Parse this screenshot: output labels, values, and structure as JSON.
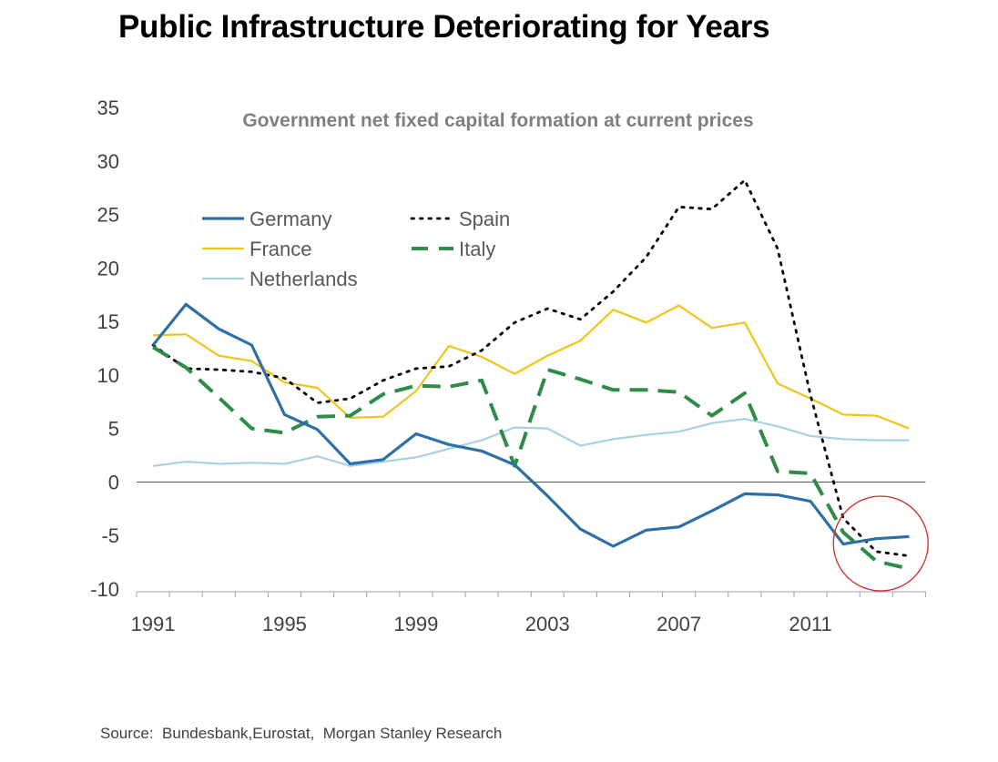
{
  "title": "Public Infrastructure Deteriorating for Years",
  "source": "Source:  Bundesbank,Eurostat,  Morgan Stanley Research",
  "chart_data": {
    "type": "line",
    "subtitle": "Government net fixed capital formation at current prices",
    "x": [
      1991,
      1992,
      1993,
      1994,
      1995,
      1996,
      1997,
      1998,
      1999,
      2000,
      2001,
      2002,
      2003,
      2004,
      2005,
      2006,
      2007,
      2008,
      2009,
      2010,
      2011,
      2012,
      2013,
      2014
    ],
    "xticks": [
      "1991",
      "1995",
      "1999",
      "2003",
      "2007",
      "2011"
    ],
    "yticks": [
      "35",
      "30",
      "25",
      "20",
      "15",
      "10",
      "5",
      "0",
      "-5",
      "-10"
    ],
    "ylim": [
      -10,
      35
    ],
    "xlabel": "",
    "ylabel": "",
    "legend_position": "top-left",
    "zero_line": true,
    "annotation": "red circle highlighting 2012-2014 values",
    "series": [
      {
        "name": "Germany",
        "color": "#2e6fa8",
        "style": "solid",
        "values": [
          12.8,
          16.6,
          14.3,
          12.8,
          6.3,
          4.9,
          1.7,
          2.1,
          4.5,
          3.5,
          2.9,
          1.6,
          -1.3,
          -4.4,
          -6.0,
          -4.5,
          -4.2,
          -2.7,
          -1.1,
          -1.2,
          -1.8,
          -5.8,
          -5.3,
          -5.1
        ]
      },
      {
        "name": "Spain",
        "color": "#000000",
        "style": "dotted",
        "values": [
          12.8,
          10.6,
          10.5,
          10.3,
          9.7,
          7.4,
          7.8,
          9.5,
          10.6,
          10.8,
          12.3,
          14.9,
          16.2,
          15.2,
          17.8,
          21.0,
          25.7,
          25.5,
          28.2,
          21.8,
          8.1,
          -3.4,
          -6.5,
          -6.9
        ]
      },
      {
        "name": "France",
        "color": "#f0c419",
        "style": "solid",
        "values": [
          13.7,
          13.8,
          11.8,
          11.3,
          9.3,
          8.8,
          6.0,
          6.1,
          8.5,
          12.7,
          11.7,
          10.1,
          11.8,
          13.2,
          16.1,
          14.9,
          16.5,
          14.4,
          14.9,
          9.2,
          7.8,
          6.3,
          6.2,
          5.0
        ]
      },
      {
        "name": "Italy",
        "color": "#2e8b48",
        "style": "dashed",
        "values": [
          12.6,
          10.7,
          7.9,
          5.0,
          4.6,
          6.1,
          6.2,
          8.2,
          9.0,
          8.9,
          9.5,
          1.5,
          10.5,
          9.6,
          8.6,
          8.6,
          8.4,
          6.2,
          8.3,
          1.0,
          0.8,
          -4.7,
          -7.4,
          -8.1
        ]
      },
      {
        "name": "Netherlands",
        "color": "#a8d2e0",
        "style": "solid",
        "values": [
          1.5,
          1.9,
          1.7,
          1.8,
          1.7,
          2.4,
          1.5,
          1.9,
          2.3,
          3.1,
          3.9,
          5.1,
          5.0,
          3.4,
          4.0,
          4.4,
          4.7,
          5.5,
          5.9,
          5.2,
          4.3,
          4.0,
          3.9,
          3.9
        ]
      }
    ]
  }
}
